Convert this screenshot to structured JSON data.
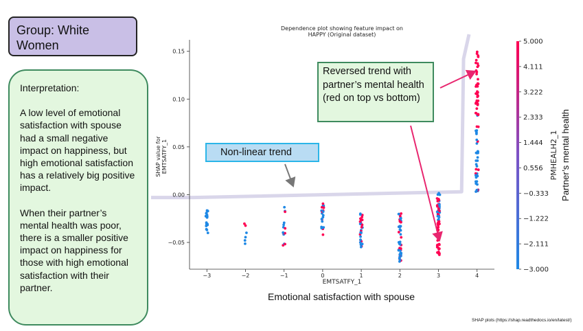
{
  "group_label": "Group: White Women",
  "interpretation": {
    "heading": "Interpretation:",
    "paragraph1": "A low level of emotional satisfaction with spouse had a small negative impact on happiness, but high emotional satisfaction has a relatively big positive impact.",
    "paragraph2": "When their partner’s mental health was poor, there is a smaller positive impact on happiness for those with high emotional satisfaction with their partner."
  },
  "callouts": {
    "reversed_trend": "Reversed trend with partner’s mental health (red on top vs bottom)",
    "nonlinear_trend": "Non-linear trend"
  },
  "source_note": "SHAP plots (https://shap.readthedocs.io/en/latest/)",
  "colors": {
    "low": "#1e88e5",
    "high": "#ff0052",
    "callout_green_fill": "#e3f7df",
    "callout_green_border": "#3e8a5e",
    "callout_blue_fill": "#b9dcf3",
    "callout_blue_border": "#2bb5e8",
    "group_fill": "#c9bfe6",
    "arrow_pink": "#e8266f",
    "trend_line": "#d9d6ea"
  },
  "chart_data": {
    "type": "scatter",
    "title": "Dependence plot showing feature impact on HAPPY (Original dataset)",
    "xlabel": "EMTSATFY_1",
    "xlabel_caption": "Emotional satisfaction with spouse",
    "ylabel": "SHAP value for EMTSATFY_1",
    "x_ticks": [
      -3,
      -2,
      -1,
      0,
      1,
      2,
      3,
      4
    ],
    "y_ticks": [
      -0.05,
      0.0,
      0.05,
      0.1,
      0.15
    ],
    "y_tick_labels": [
      "−0.05",
      "0.00",
      "0.05",
      "0.10",
      "0.15"
    ],
    "ylim": [
      -0.078,
      0.162
    ],
    "xlim": [
      -3.45,
      4.45
    ],
    "colorbar": {
      "label": "PMHEALH2_1",
      "caption": "Partner’s mental health",
      "range": [
        -3.0,
        5.0
      ],
      "tick_labels": [
        "5.000",
        "4.111",
        "3.222",
        "2.333",
        "1.444",
        "0.556",
        "−0.333",
        "−1.222",
        "−2.111",
        "−3.000"
      ]
    },
    "points": [
      {
        "x": -3,
        "y_min": -0.04,
        "y_max": -0.015,
        "n": 20,
        "color_top": -2.5,
        "color_bottom": -2.5,
        "colors": [
          -3.0,
          -2.1
        ]
      },
      {
        "x": -2,
        "y_min": -0.053,
        "y_max": -0.022,
        "n": 6,
        "colors": [
          -3.0,
          5.0
        ]
      },
      {
        "x": -1,
        "y_min": -0.058,
        "y_max": -0.013,
        "n": 14,
        "colors": [
          -3.0,
          5.0
        ]
      },
      {
        "x": 0,
        "y_min": -0.042,
        "y_max": -0.009,
        "n": 24,
        "colors": [
          -3.0,
          5.0
        ]
      },
      {
        "x": 1,
        "y_min": -0.055,
        "y_max": -0.018,
        "n": 34,
        "colors": [
          -3.0,
          5.0
        ]
      },
      {
        "x": 2,
        "y_min": -0.07,
        "y_max": -0.018,
        "n": 50,
        "colors": [
          -3.0,
          5.0
        ]
      },
      {
        "x": 3,
        "y_min": -0.063,
        "y_max": 0.002,
        "n": 70,
        "colors": [
          -3.0,
          5.0
        ]
      },
      {
        "x": 4,
        "y_min": 0.003,
        "y_max": 0.15,
        "n": 80,
        "colors": [
          -3.0,
          5.0
        ]
      }
    ],
    "trend_line": {
      "x": [
        -3.35,
        3.6,
        3.65
      ],
      "y": [
        -0.003,
        0.003,
        0.142
      ]
    }
  }
}
